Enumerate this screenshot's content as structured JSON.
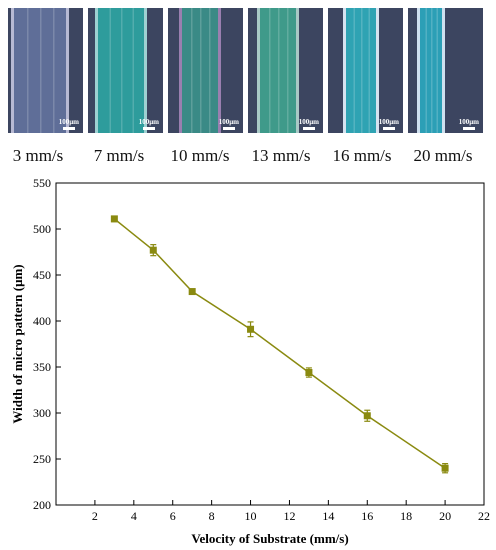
{
  "micrographs": [
    {
      "velocity_label": "3 mm/s",
      "scale_label": "100μm",
      "stripe_color": "#5f6e98",
      "edge_color": "#b7b9d3"
    },
    {
      "velocity_label": "7 mm/s",
      "scale_label": "100μm",
      "stripe_color": "#2e9c9c",
      "edge_color": "#9ed1d2"
    },
    {
      "velocity_label": "10 mm/s",
      "scale_label": "100μm",
      "stripe_color": "#3a8a86",
      "edge_color": "#9a7fb0"
    },
    {
      "velocity_label": "13 mm/s",
      "scale_label": "100μm",
      "stripe_color": "#3f9a8a",
      "edge_color": "#a9c9c6"
    },
    {
      "velocity_label": "16 mm/s",
      "scale_label": "100μm",
      "stripe_color": "#2fa3b3",
      "edge_color": "#d6e3f0"
    },
    {
      "velocity_label": "20 mm/s",
      "scale_label": "100μm",
      "stripe_color": "#2c9fb6",
      "edge_color": "#cfe0ef"
    }
  ],
  "chart_data": {
    "type": "line",
    "title": "",
    "xlabel": "Velocity of Substrate (mm/s)",
    "ylabel": "Width of micro pattern (μm)",
    "xlim": [
      0,
      22
    ],
    "ylim": [
      200,
      550
    ],
    "xticks": [
      2,
      4,
      6,
      8,
      10,
      12,
      14,
      16,
      18,
      20,
      22
    ],
    "yticks": [
      200,
      250,
      300,
      350,
      400,
      450,
      500,
      550
    ],
    "x": [
      3,
      5,
      7,
      10,
      13,
      16,
      20
    ],
    "y": [
      511,
      477,
      432,
      391,
      344,
      297,
      240
    ],
    "error": [
      3,
      6,
      2,
      8,
      5,
      6,
      5
    ],
    "grid": false,
    "series_color": "#8a8a10",
    "marker": "square"
  }
}
